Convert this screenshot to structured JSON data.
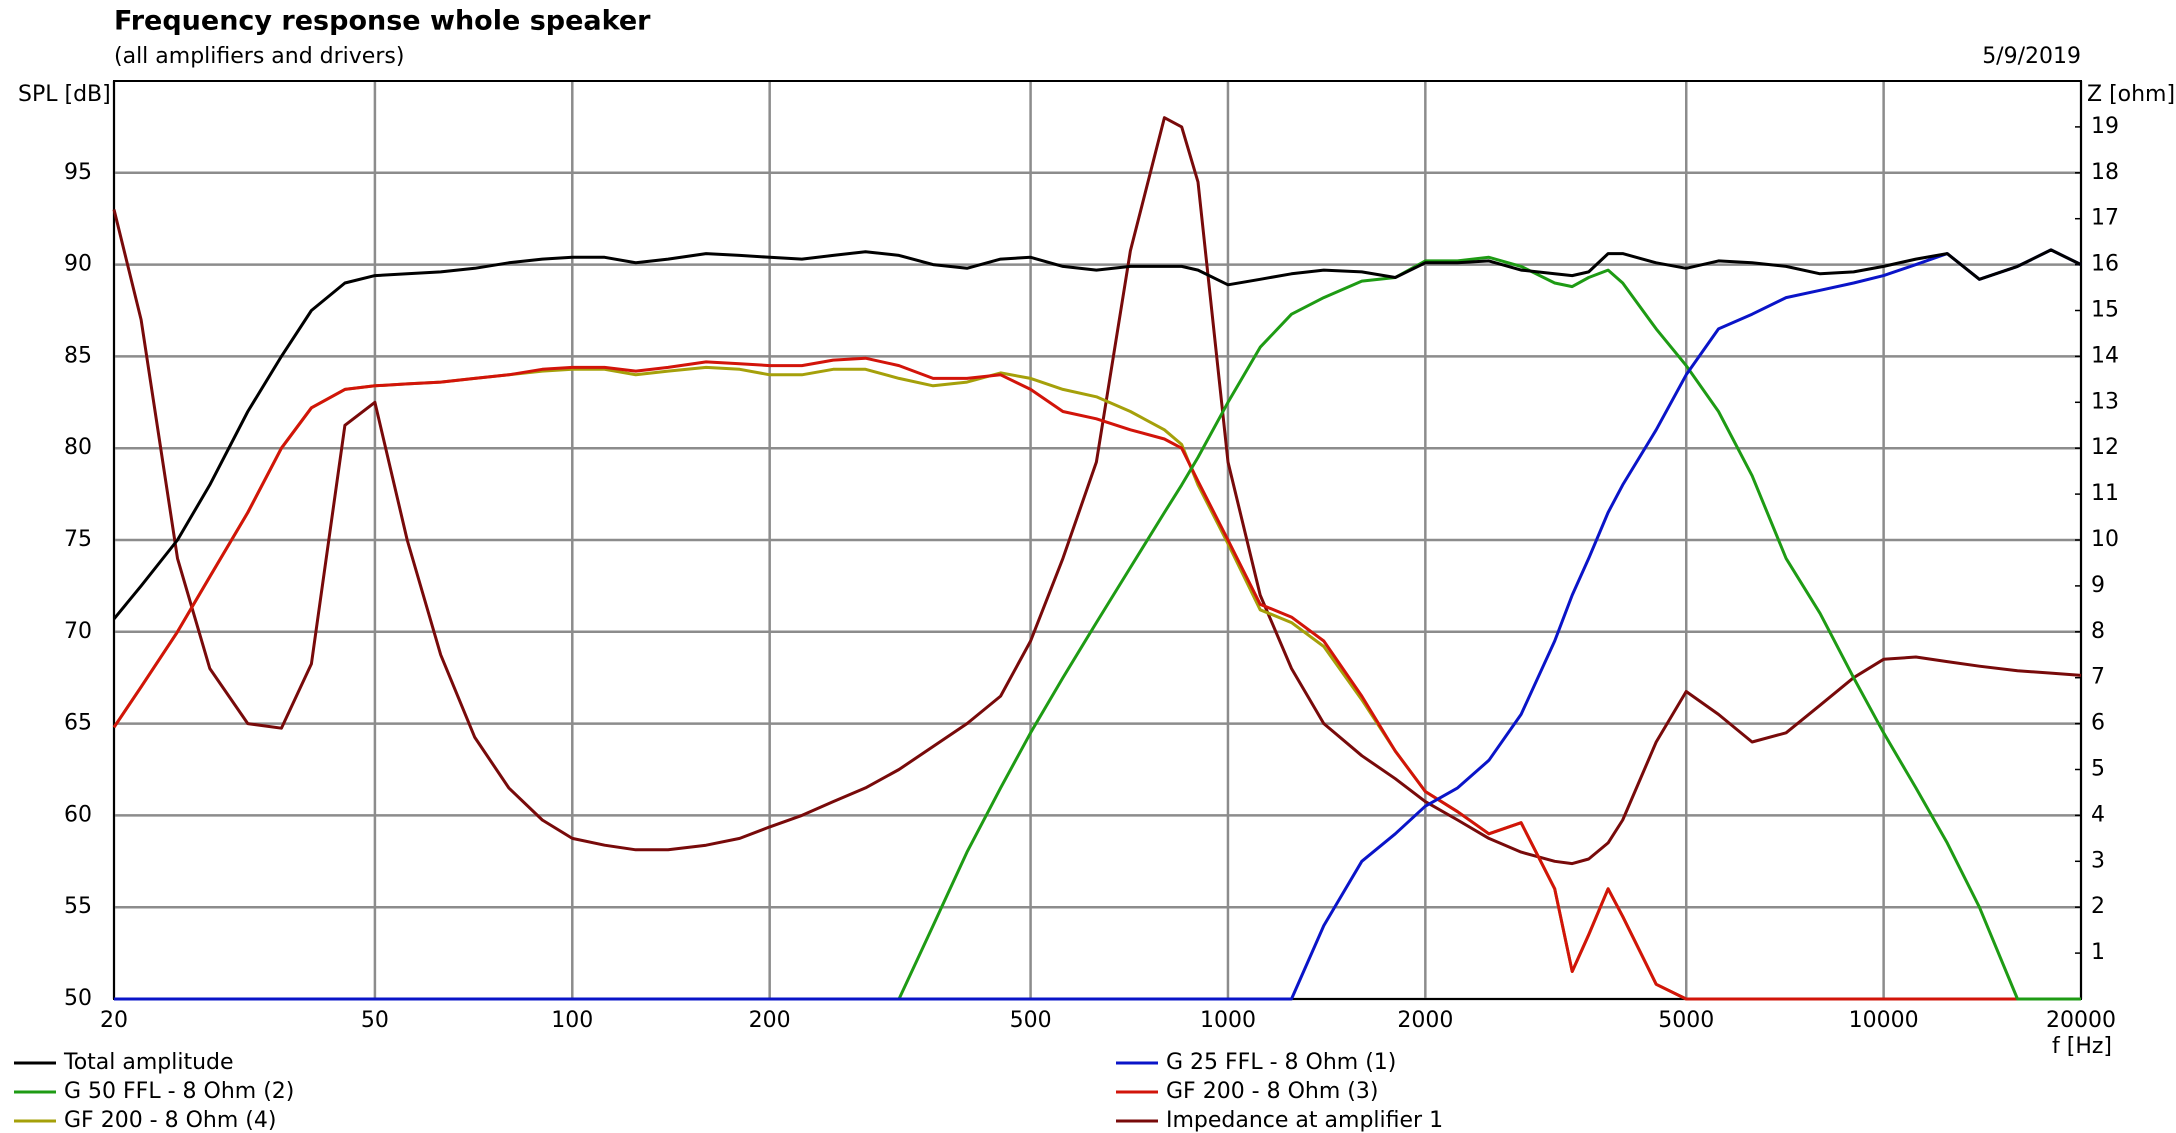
{
  "chart_data": {
    "type": "line",
    "title": "Frequency response whole speaker",
    "subtitle": "(all amplifiers and drivers)",
    "date": "5/9/2019",
    "ylabel": "SPL [dB]",
    "y2label": "Z [ohm]",
    "xlabel": "f [Hz]",
    "xscale": "log",
    "grid": true,
    "legend": "bottom",
    "xlim": [
      20,
      20000
    ],
    "xticks": [
      20,
      50,
      100,
      200,
      500,
      1000,
      2000,
      5000,
      10000,
      20000
    ],
    "ylim": [
      50,
      100
    ],
    "yticks": [
      50,
      55,
      60,
      65,
      70,
      75,
      80,
      85,
      90,
      95
    ],
    "y2lim": [
      0,
      20
    ],
    "y2ticks": [
      1,
      2,
      3,
      4,
      5,
      6,
      7,
      8,
      9,
      10,
      11,
      12,
      13,
      14,
      15,
      16,
      17,
      18,
      19
    ],
    "x": [
      20,
      22,
      25,
      28,
      32,
      36,
      40,
      45,
      50,
      56,
      63,
      71,
      80,
      90,
      100,
      112,
      125,
      140,
      160,
      180,
      200,
      224,
      250,
      280,
      315,
      355,
      400,
      450,
      500,
      560,
      630,
      710,
      800,
      850,
      900,
      1000,
      1120,
      1250,
      1400,
      1600,
      1800,
      2000,
      2240,
      2500,
      2800,
      3150,
      3350,
      3550,
      3800,
      4000,
      4500,
      5000,
      5600,
      6300,
      7100,
      8000,
      9000,
      10000,
      11200,
      12500,
      14000,
      16000,
      18000,
      20000
    ],
    "series": [
      {
        "name": "Total amplitude",
        "color": "#000000",
        "values": [
          70.7,
          72.5,
          75,
          78,
          82,
          85,
          87.5,
          89,
          89.4,
          89.5,
          89.6,
          89.8,
          90.1,
          90.3,
          90.4,
          90.4,
          90.1,
          90.3,
          90.6,
          90.5,
          90.4,
          90.3,
          90.5,
          90.7,
          90.5,
          90.0,
          89.8,
          90.3,
          90.4,
          89.9,
          89.7,
          89.9,
          89.9,
          89.9,
          89.7,
          88.9,
          89.2,
          89.5,
          89.7,
          89.6,
          89.3,
          90.1,
          90.1,
          90.2,
          89.7,
          89.5,
          89.4,
          89.6,
          90.6,
          90.6,
          90.1,
          89.8,
          90.2,
          90.1,
          89.9,
          89.5,
          89.6,
          89.9,
          90.3,
          90.6,
          89.2,
          89.9,
          90.8,
          90.0
        ]
      },
      {
        "name": "G 25 FFL - 8 Ohm (1)",
        "color": "#0a14c8",
        "values": [
          50,
          50,
          50,
          50,
          50,
          50,
          50,
          50,
          50,
          50,
          50,
          50,
          50,
          50,
          50,
          50,
          50,
          50,
          50,
          50,
          50,
          50,
          50,
          50,
          50,
          50,
          50,
          50,
          50,
          50,
          50,
          50,
          50,
          50,
          50,
          50,
          50,
          50,
          54,
          57.5,
          59,
          60.5,
          61.5,
          63,
          65.5,
          69.5,
          72,
          74,
          76.5,
          78,
          81,
          84,
          86.5,
          87.3,
          88.2,
          88.6,
          89,
          89.4,
          90.0,
          90.6,
          89.2,
          89.9,
          90.8,
          90.0
        ]
      },
      {
        "name": "G 50 FFL - 8 Ohm (2)",
        "color": "#1e9b14",
        "values": [
          50,
          50,
          50,
          50,
          50,
          50,
          50,
          50,
          50,
          50,
          50,
          50,
          50,
          50,
          50,
          50,
          50,
          50,
          50,
          50,
          50,
          50,
          50,
          50,
          50,
          54,
          58,
          61.5,
          64.5,
          67.5,
          70.5,
          73.5,
          76.5,
          78,
          79.5,
          82.5,
          85.5,
          87.3,
          88.2,
          89.1,
          89.3,
          90.2,
          90.2,
          90.4,
          89.9,
          89.0,
          88.8,
          89.3,
          89.7,
          89.0,
          86.5,
          84.5,
          82,
          78.5,
          74,
          71,
          67.5,
          64.5,
          61.5,
          58.5,
          55,
          50,
          50,
          50
        ]
      },
      {
        "name": "GF 200 - 8 Ohm (3)",
        "color": "#d2140a",
        "values": [
          64.8,
          67,
          70,
          73,
          76.5,
          80,
          82.2,
          83.2,
          83.4,
          83.5,
          83.6,
          83.8,
          84.0,
          84.3,
          84.4,
          84.4,
          84.2,
          84.4,
          84.7,
          84.6,
          84.5,
          84.5,
          84.8,
          84.9,
          84.5,
          83.8,
          83.8,
          84.0,
          83.2,
          82.0,
          81.6,
          81.0,
          80.5,
          80.0,
          78.2,
          75.0,
          71.5,
          70.8,
          69.5,
          66.5,
          63.5,
          61.3,
          60.2,
          59.0,
          59.6,
          56.0,
          51.5,
          53.5,
          56.0,
          54.5,
          50.8,
          50,
          50,
          50,
          50,
          50,
          50,
          50,
          50,
          50,
          50,
          50,
          50,
          50
        ]
      },
      {
        "name": "GF 200 - 8 Ohm (4)",
        "color": "#a5a00a",
        "values": [
          64.8,
          67,
          70,
          73,
          76.5,
          80,
          82.2,
          83.2,
          83.4,
          83.5,
          83.6,
          83.8,
          84.0,
          84.2,
          84.3,
          84.3,
          84.0,
          84.2,
          84.4,
          84.3,
          84.0,
          84.0,
          84.3,
          84.3,
          83.8,
          83.4,
          83.6,
          84.1,
          83.8,
          83.2,
          82.8,
          82.0,
          81.0,
          80.2,
          78.0,
          74.8,
          71.2,
          70.5,
          69.2,
          66.3,
          63.5,
          61.3,
          60.2,
          59.0,
          59.6,
          56.0,
          51.5,
          53.5,
          56.0,
          54.5,
          50.8,
          50,
          50,
          50,
          50,
          50,
          50,
          50,
          50,
          50,
          50,
          50,
          50,
          50
        ]
      },
      {
        "name": "Impedance at amplifier 1",
        "color": "#780a0a",
        "axis": "y2",
        "values": [
          17.2,
          14.8,
          9.6,
          7.2,
          6.0,
          5.9,
          7.3,
          12.5,
          13.0,
          10.0,
          7.5,
          5.7,
          4.6,
          3.9,
          3.5,
          3.35,
          3.25,
          3.25,
          3.35,
          3.5,
          3.75,
          4.0,
          4.3,
          4.6,
          5.0,
          5.5,
          6.0,
          6.6,
          7.8,
          9.6,
          11.7,
          16.3,
          19.2,
          19.0,
          17.8,
          11.7,
          8.8,
          7.2,
          6.0,
          5.3,
          4.8,
          4.3,
          3.9,
          3.5,
          3.2,
          3.0,
          2.95,
          3.05,
          3.4,
          3.9,
          5.6,
          6.7,
          6.2,
          5.6,
          5.8,
          6.4,
          7.0,
          7.4,
          7.45,
          7.35,
          7.25,
          7.15,
          7.1,
          7.05
        ]
      }
    ]
  }
}
